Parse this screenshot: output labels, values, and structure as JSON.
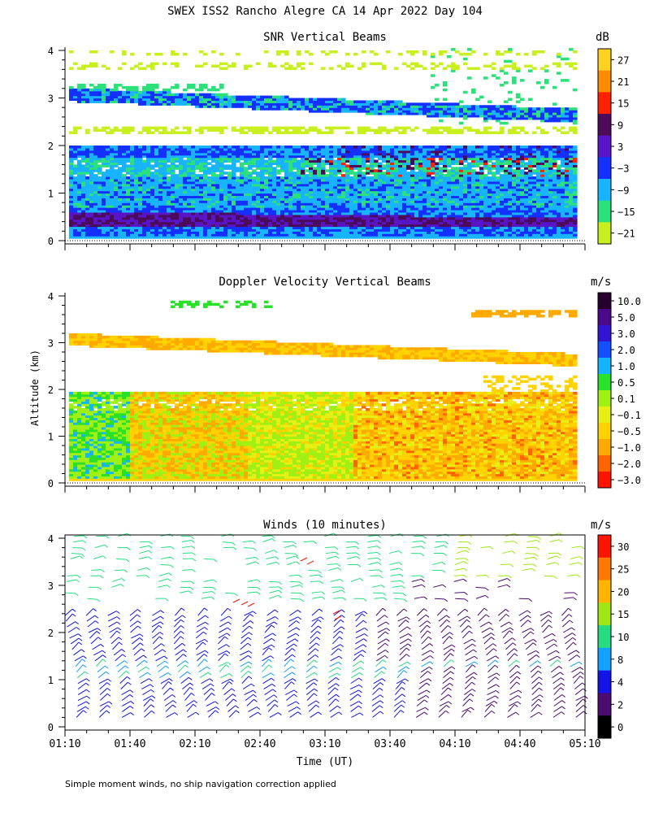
{
  "title": "SWEX ISS2 Rancho Alegre CA  14 Apr 2022 Day 104",
  "ylabel": "Altitude (km)",
  "xlabel": "Time (UT)",
  "footnote": "Simple moment winds, no ship navigation correction applied",
  "chart_data": [
    {
      "type": "heatmap",
      "title": "SNR Vertical Beams",
      "unit": "dB",
      "x_ticks": [
        "01:10",
        "01:40",
        "02:10",
        "02:40",
        "03:10",
        "03:40",
        "04:10",
        "04:40",
        "05:10"
      ],
      "y_ticks": [
        "0",
        "1",
        "2",
        "3",
        "4"
      ],
      "ylim": [
        0,
        4
      ],
      "colorbar_labels": [
        "27",
        "21",
        "15",
        "9",
        "3",
        "−3",
        "−9",
        "−15",
        "−21"
      ],
      "colorbar_colors": [
        "#ffd21f",
        "#ff8c00",
        "#ff2000",
        "#4b0a5a",
        "#5a14c8",
        "#1430ff",
        "#18b4ff",
        "#2de17a",
        "#c8f01e"
      ],
      "layers": [
        {
          "altitude_km": 0.3,
          "snr_db": -3
        },
        {
          "altitude_km": 0.6,
          "snr_db": 3
        },
        {
          "altitude_km": 1.0,
          "snr_db": -9
        },
        {
          "altitude_km": 1.5,
          "snr_db": -12
        },
        {
          "altitude_km": 1.85,
          "snr_db": -3
        },
        {
          "altitude_km": 2.3,
          "snr_db": -18
        },
        {
          "altitude_km": 3.0,
          "snr_db": -12
        },
        {
          "altitude_km": 3.7,
          "snr_db": -18
        }
      ]
    },
    {
      "type": "heatmap",
      "title": "Doppler Velocity Vertical Beams",
      "unit": "m/s",
      "x_ticks": [
        "01:10",
        "01:40",
        "02:10",
        "02:40",
        "03:10",
        "03:40",
        "04:10",
        "04:40",
        "05:10"
      ],
      "y_ticks": [
        "0",
        "1",
        "2",
        "3",
        "4"
      ],
      "ylim": [
        0,
        4
      ],
      "colorbar_labels": [
        "10.0",
        "5.0",
        "3.0",
        "2.0",
        "1.0",
        "0.5",
        "0.1",
        "−0.1",
        "−0.5",
        "−1.0",
        "−2.0",
        "−3.0"
      ],
      "colorbar_colors": [
        "#28002d",
        "#4b0a8c",
        "#3214d2",
        "#1450ff",
        "#14b4ff",
        "#28e128",
        "#a0f014",
        "#e6f014",
        "#ffd200",
        "#ffaa00",
        "#ff6400",
        "#ff1400"
      ],
      "layers": [
        {
          "altitude_km": 0.5,
          "velocity_ms": -0.5
        },
        {
          "altitude_km": 1.2,
          "velocity_ms": -0.3
        },
        {
          "altitude_km": 1.8,
          "velocity_ms": -1.0
        },
        {
          "altitude_km": 3.0,
          "velocity_ms": -0.7
        },
        {
          "altitude_km": 3.6,
          "velocity_ms": -1.0
        }
      ]
    },
    {
      "type": "scatter",
      "title": "Winds (10 minutes)",
      "unit": "m/s",
      "x_ticks": [
        "01:10",
        "01:40",
        "02:10",
        "02:40",
        "03:10",
        "03:40",
        "04:10",
        "04:40",
        "05:10"
      ],
      "y_ticks": [
        "0",
        "1",
        "2",
        "3",
        "4"
      ],
      "ylim": [
        0,
        4
      ],
      "colorbar_labels": [
        "30",
        "25",
        "20",
        "15",
        "10",
        "8",
        "4",
        "2",
        "0"
      ],
      "colorbar_colors": [
        "#ff1400",
        "#ff7800",
        "#ffb400",
        "#a0e614",
        "#28dc82",
        "#14a0ff",
        "#1414e6",
        "#4b0a6e",
        "#000000"
      ],
      "profile_times_utc": [
        "01:10",
        "01:20",
        "01:30",
        "01:40",
        "01:50",
        "02:00",
        "02:10",
        "02:20",
        "02:30",
        "02:40",
        "02:50",
        "03:00",
        "03:10",
        "03:20",
        "03:30",
        "03:40",
        "03:50",
        "04:00",
        "04:10",
        "04:20",
        "04:30",
        "04:40",
        "04:50",
        "05:00"
      ]
    }
  ]
}
